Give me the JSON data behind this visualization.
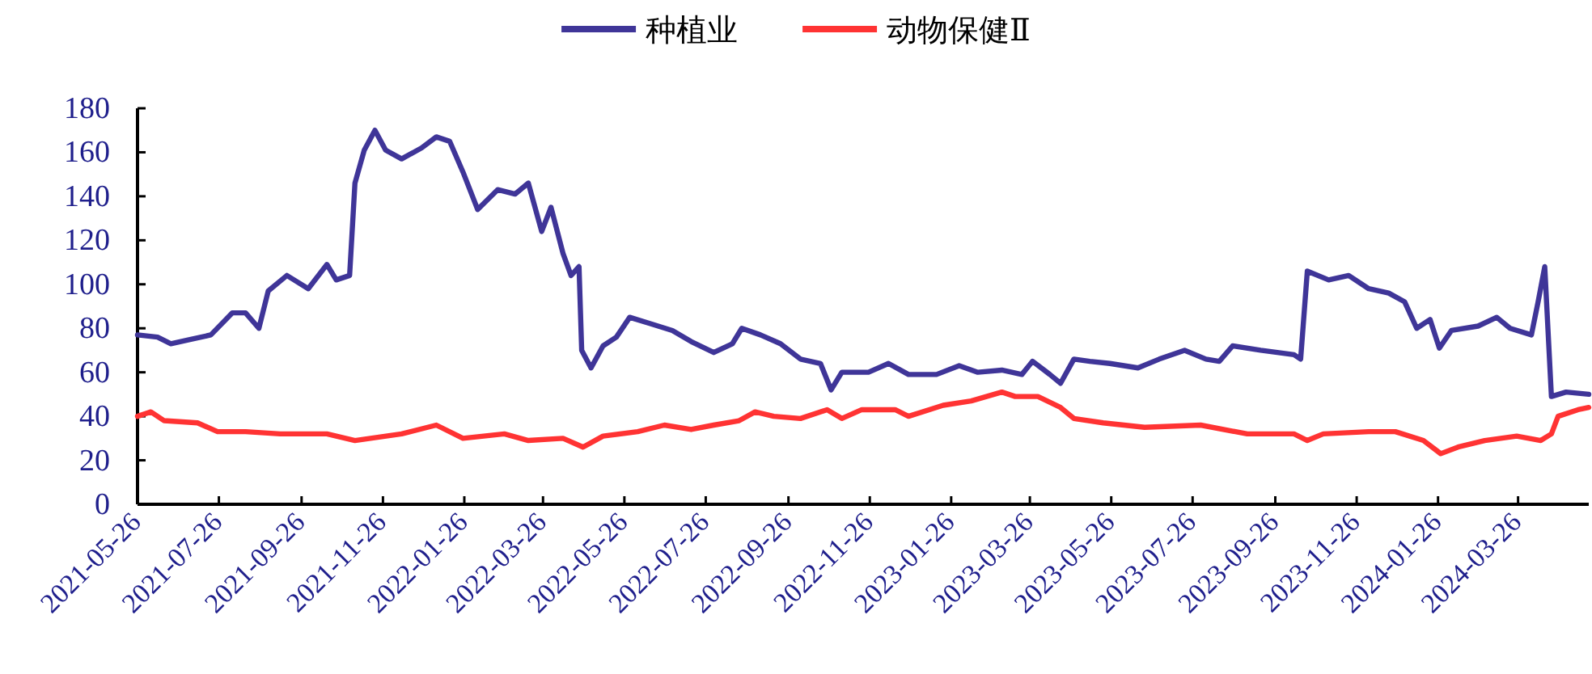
{
  "chart_data": {
    "type": "line",
    "legend": "top",
    "xlim": [
      "2021-05-26",
      "2024-05-18"
    ],
    "ylim": [
      0,
      180
    ],
    "xticks": [
      "2021-05-26",
      "2021-07-26",
      "2021-09-26",
      "2021-11-26",
      "2022-01-26",
      "2022-03-26",
      "2022-05-26",
      "2022-07-26",
      "2022-09-26",
      "2022-11-26",
      "2023-01-26",
      "2023-03-26",
      "2023-05-26",
      "2023-07-26",
      "2023-09-26",
      "2023-11-26",
      "2024-01-26",
      "2024-03-26"
    ],
    "yticks": [
      0,
      20,
      40,
      60,
      80,
      100,
      120,
      140,
      160,
      180
    ],
    "series": [
      {
        "name": "种植业",
        "color": "#3f3598",
        "x": [
          "2021-05-26",
          "2021-06-10",
          "2021-06-20",
          "2021-07-05",
          "2021-07-20",
          "2021-08-05",
          "2021-08-15",
          "2021-08-25",
          "2021-09-01",
          "2021-09-15",
          "2021-10-01",
          "2021-10-15",
          "2021-10-22",
          "2021-11-01",
          "2021-11-05",
          "2021-11-12",
          "2021-11-20",
          "2021-11-28",
          "2021-12-10",
          "2021-12-25",
          "2022-01-05",
          "2022-01-15",
          "2022-01-25",
          "2022-02-05",
          "2022-02-20",
          "2022-03-05",
          "2022-03-15",
          "2022-03-25",
          "2022-04-01",
          "2022-04-10",
          "2022-04-16",
          "2022-04-22",
          "2022-04-24",
          "2022-05-01",
          "2022-05-10",
          "2022-05-20",
          "2022-05-30",
          "2022-06-15",
          "2022-07-01",
          "2022-07-15",
          "2022-08-01",
          "2022-08-15",
          "2022-08-22",
          "2022-09-05",
          "2022-09-20",
          "2022-10-05",
          "2022-10-20",
          "2022-10-28",
          "2022-11-05",
          "2022-11-25",
          "2022-12-10",
          "2022-12-25",
          "2023-01-15",
          "2023-02-01",
          "2023-02-15",
          "2023-03-05",
          "2023-03-20",
          "2023-03-28",
          "2023-04-10",
          "2023-04-18",
          "2023-04-28",
          "2023-05-10",
          "2023-05-25",
          "2023-06-15",
          "2023-07-01",
          "2023-07-20",
          "2023-08-05",
          "2023-08-15",
          "2023-08-25",
          "2023-09-15",
          "2023-10-10",
          "2023-10-15",
          "2023-10-20",
          "2023-11-05",
          "2023-11-20",
          "2023-12-05",
          "2023-12-20",
          "2024-01-01",
          "2024-01-10",
          "2024-01-20",
          "2024-01-27",
          "2024-02-05",
          "2024-02-25",
          "2024-03-10",
          "2024-03-20",
          "2024-04-05",
          "2024-04-10",
          "2024-04-15",
          "2024-04-20",
          "2024-05-01",
          "2024-05-18"
        ],
        "values": [
          77,
          76,
          73,
          75,
          77,
          87,
          87,
          80,
          97,
          104,
          98,
          109,
          102,
          104,
          146,
          161,
          170,
          161,
          157,
          162,
          167,
          165,
          151,
          134,
          143,
          141,
          146,
          124,
          135,
          114,
          104,
          108,
          70,
          62,
          72,
          76,
          85,
          82,
          79,
          74,
          69,
          73,
          80,
          77,
          73,
          66,
          64,
          52,
          60,
          60,
          64,
          59,
          59,
          63,
          60,
          61,
          59,
          65,
          59,
          55,
          66,
          65,
          64,
          62,
          66,
          70,
          66,
          65,
          72,
          70,
          68,
          66,
          106,
          102,
          104,
          98,
          96,
          92,
          80,
          84,
          71,
          79,
          81,
          85,
          80,
          77,
          92,
          108,
          49,
          51,
          50
        ]
      },
      {
        "name": "动物保健Ⅱ",
        "color": "#ff3333",
        "x": [
          "2021-05-26",
          "2021-06-05",
          "2021-06-15",
          "2021-07-10",
          "2021-07-25",
          "2021-08-15",
          "2021-09-10",
          "2021-10-15",
          "2021-11-05",
          "2021-12-10",
          "2022-01-05",
          "2022-01-25",
          "2022-02-25",
          "2022-03-15",
          "2022-04-10",
          "2022-04-25",
          "2022-05-10",
          "2022-06-05",
          "2022-06-25",
          "2022-07-15",
          "2022-08-01",
          "2022-08-20",
          "2022-09-01",
          "2022-09-15",
          "2022-10-05",
          "2022-10-25",
          "2022-11-05",
          "2022-11-20",
          "2022-12-15",
          "2022-12-25",
          "2023-01-20",
          "2023-02-10",
          "2023-03-05",
          "2023-03-15",
          "2023-04-01",
          "2023-04-18",
          "2023-04-28",
          "2023-05-20",
          "2023-06-20",
          "2023-08-01",
          "2023-09-05",
          "2023-10-10",
          "2023-10-20",
          "2023-11-01",
          "2023-12-05",
          "2023-12-25",
          "2024-01-15",
          "2024-01-28",
          "2024-02-10",
          "2024-03-01",
          "2024-03-25",
          "2024-04-12",
          "2024-04-20",
          "2024-04-25",
          "2024-05-10",
          "2024-05-18"
        ],
        "values": [
          40,
          42,
          38,
          37,
          33,
          33,
          32,
          32,
          29,
          32,
          36,
          30,
          32,
          29,
          30,
          26,
          31,
          33,
          36,
          34,
          36,
          38,
          42,
          40,
          39,
          43,
          39,
          43,
          43,
          40,
          45,
          47,
          51,
          49,
          49,
          44,
          39,
          37,
          35,
          36,
          32,
          32,
          29,
          32,
          33,
          33,
          29,
          23,
          26,
          29,
          31,
          29,
          32,
          40,
          43,
          44
        ]
      }
    ]
  }
}
